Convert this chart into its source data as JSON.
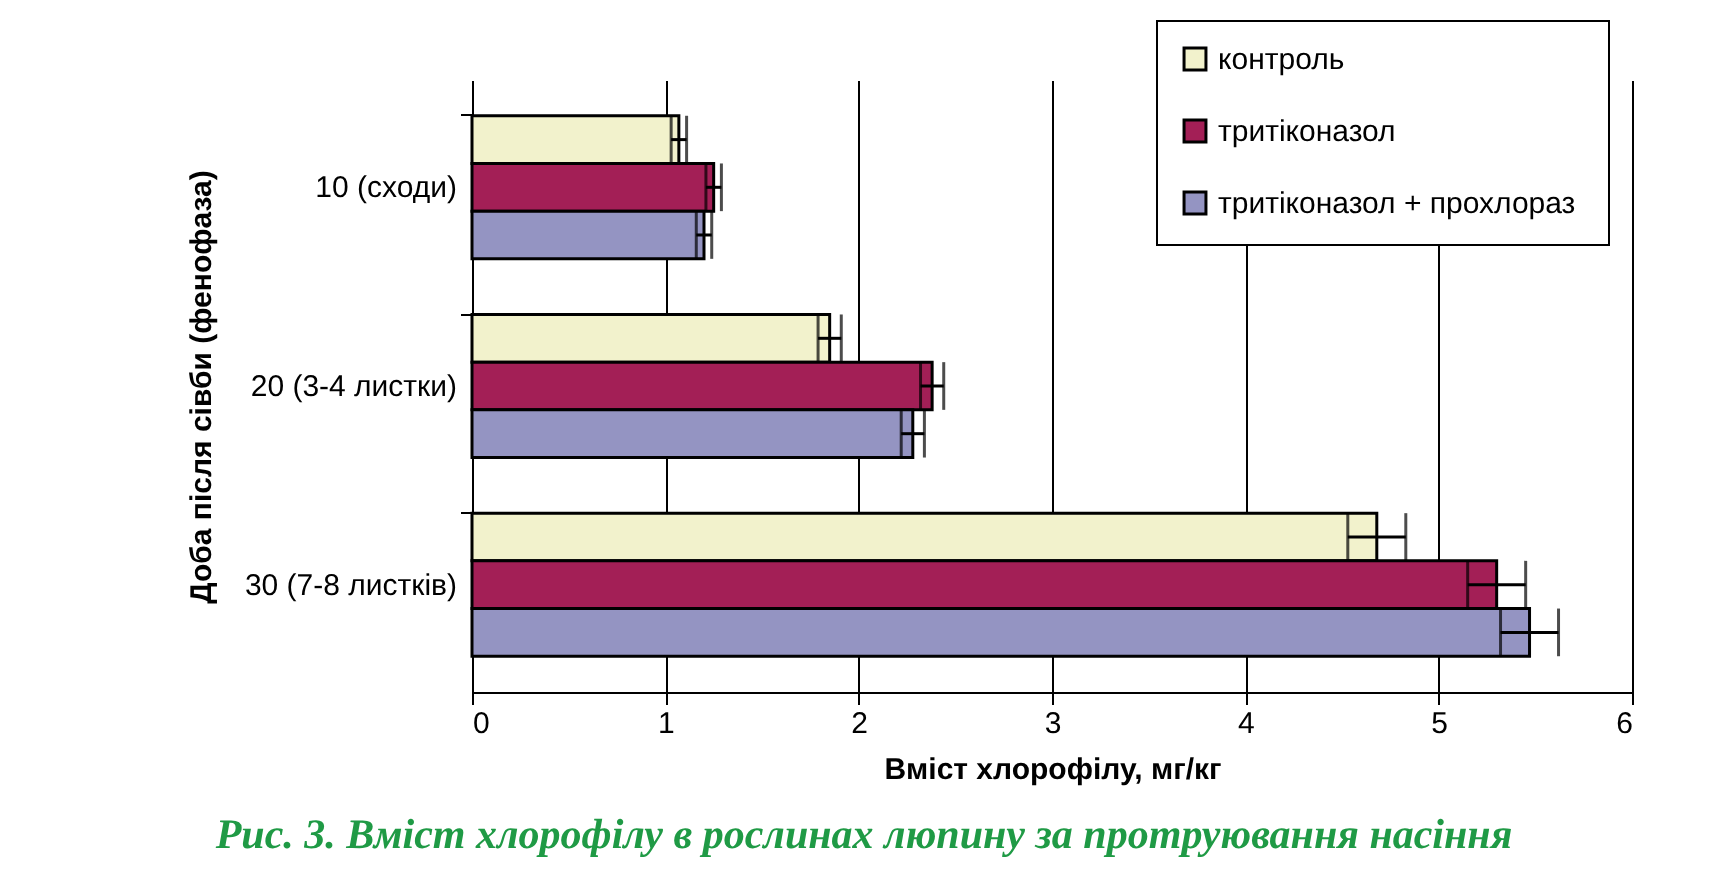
{
  "chart_data": {
    "type": "bar",
    "orientation": "horizontal",
    "ylabel": "Доба після сівби (фенофаза)",
    "xlabel": "Вміст хлорофілу, мг/кг",
    "categories": [
      "10 (сходи)",
      "20 (3-4 листки)",
      "30 (7-8 листків)"
    ],
    "series": [
      {
        "name": "контроль",
        "color": "#f2f2cc",
        "values": [
          1.07,
          1.85,
          4.68
        ],
        "errors": [
          0.04,
          0.06,
          0.15
        ]
      },
      {
        "name": "тритіконазол",
        "color": "#a31f56",
        "values": [
          1.25,
          2.38,
          5.3
        ],
        "errors": [
          0.04,
          0.06,
          0.15
        ]
      },
      {
        "name": "тритіконазол  + прохлораз",
        "color": "#9494c2",
        "values": [
          1.2,
          2.28,
          5.47
        ],
        "errors": [
          0.04,
          0.06,
          0.15
        ]
      }
    ],
    "xlim": [
      0,
      6
    ],
    "xticks": [
      0,
      1,
      2,
      3,
      4,
      5,
      6
    ],
    "grid": "x",
    "legend": "top right",
    "annotations": [
      "Рис. 3. Вміст хлорофілу в рослинах люпину за протруювання насіння"
    ]
  }
}
